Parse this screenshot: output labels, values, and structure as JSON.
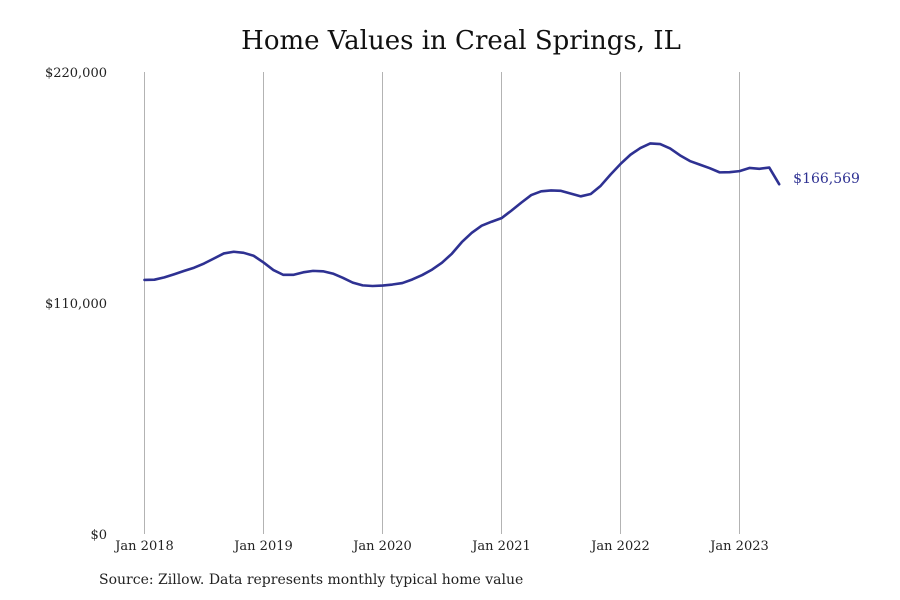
{
  "chart_data": {
    "type": "line",
    "title": "Home Values in Creal Springs, IL",
    "xlabel": "",
    "ylabel": "",
    "x_ticks": [
      "Jan 2018",
      "Jan 2019",
      "Jan 2020",
      "Jan 2021",
      "Jan 2022",
      "Jan 2023"
    ],
    "y_ticks": [
      "$0",
      "$110,000",
      "$220,000"
    ],
    "ylim": [
      0,
      220000
    ],
    "grid": "vertical",
    "legend": "none",
    "line_color": "#2e3192",
    "end_label": "$166,569",
    "series": [
      {
        "x": [
          "2018-01",
          "2018-02",
          "2018-03",
          "2018-04",
          "2018-05",
          "2018-06",
          "2018-07",
          "2018-08",
          "2018-09",
          "2018-10",
          "2018-11",
          "2018-12",
          "2019-01",
          "2019-02",
          "2019-03",
          "2019-04",
          "2019-05",
          "2019-06",
          "2019-07",
          "2019-08",
          "2019-09",
          "2019-10",
          "2019-11",
          "2019-12",
          "2020-01",
          "2020-02",
          "2020-03",
          "2020-04",
          "2020-05",
          "2020-06",
          "2020-07",
          "2020-08",
          "2020-09",
          "2020-10",
          "2020-11",
          "2020-12",
          "2021-01",
          "2021-02",
          "2021-03",
          "2021-04",
          "2021-05",
          "2021-06",
          "2021-07",
          "2021-08",
          "2021-09",
          "2021-10",
          "2021-11",
          "2021-12",
          "2022-01",
          "2022-02",
          "2022-03",
          "2022-04",
          "2022-05",
          "2022-06",
          "2022-07",
          "2022-08",
          "2022-09",
          "2022-10",
          "2022-11",
          "2022-12",
          "2023-01",
          "2023-02",
          "2023-03",
          "2023-04",
          "2023-05"
        ],
        "values": [
          121000,
          121100,
          122200,
          123700,
          125300,
          126800,
          128800,
          131200,
          133600,
          134400,
          133900,
          132500,
          129300,
          125700,
          123400,
          123400,
          124600,
          125300,
          125100,
          124000,
          122000,
          119700,
          118400,
          118100,
          118300,
          118800,
          119500,
          121200,
          123300,
          125900,
          129200,
          133500,
          139000,
          143400,
          146800,
          148700,
          150400,
          154000,
          157800,
          161400,
          163200,
          163600,
          163400,
          162100,
          160800,
          161900,
          165800,
          171200,
          176200,
          180600,
          183800,
          186000,
          185700,
          183600,
          180300,
          177600,
          175900,
          174200,
          172200,
          172300,
          172800,
          174300,
          173900,
          174500,
          166569
        ]
      }
    ]
  },
  "source": "Source: Zillow. Data represents monthly typical home value"
}
